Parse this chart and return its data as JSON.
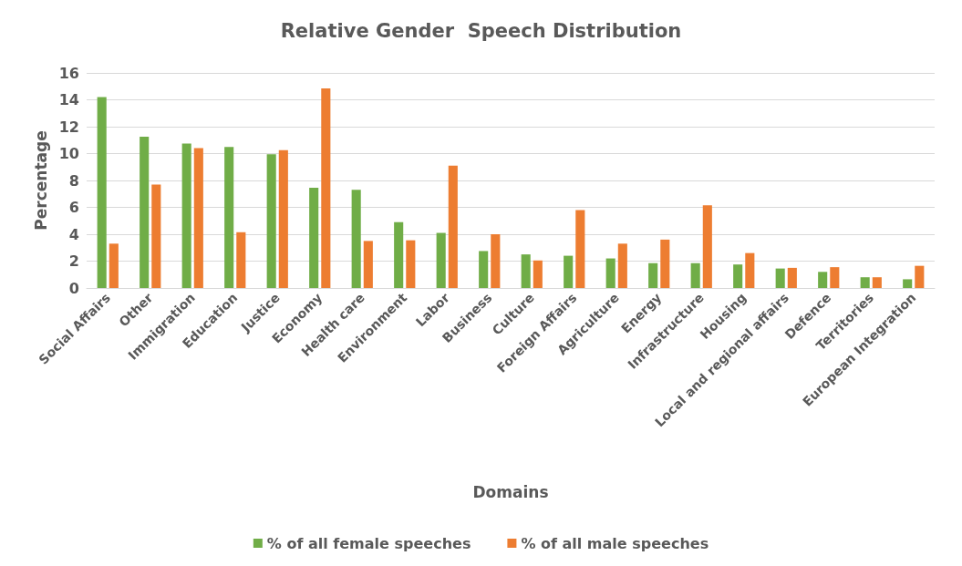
{
  "chart_data": {
    "type": "bar",
    "title": "Relative Gender  Speech Distribution",
    "xlabel": "Domains",
    "ylabel": "Percentage",
    "categories": [
      "Social Affairs",
      "Other",
      "Immigration",
      "Education",
      "Justice",
      "Economy",
      "Health care",
      "Environment",
      "Labor",
      "Business",
      "Culture",
      "Foreign Affairs",
      "Agriculture",
      "Energy",
      "Infrastructure",
      "Housing",
      "Local and regional affairs",
      "Defence",
      "Territories",
      "European Integration"
    ],
    "series": [
      {
        "name": "% of all female speeches",
        "color": "#70ad47",
        "values": [
          14.2,
          11.25,
          10.75,
          10.5,
          9.95,
          7.45,
          7.3,
          4.9,
          4.1,
          2.75,
          2.5,
          2.4,
          2.2,
          1.85,
          1.85,
          1.75,
          1.45,
          1.2,
          0.8,
          0.65
        ]
      },
      {
        "name": "% of all male speeches",
        "color": "#ed7d31",
        "values": [
          3.3,
          7.7,
          10.4,
          4.15,
          10.25,
          14.85,
          3.5,
          3.55,
          9.1,
          4.0,
          2.05,
          5.8,
          3.3,
          3.6,
          6.15,
          2.6,
          1.5,
          1.55,
          0.8,
          1.65
        ]
      }
    ],
    "ylim": [
      0,
      16
    ],
    "yticks": [
      0,
      2,
      4,
      6,
      8,
      10,
      12,
      14,
      16
    ],
    "grid": "y",
    "legend": "bottom"
  }
}
